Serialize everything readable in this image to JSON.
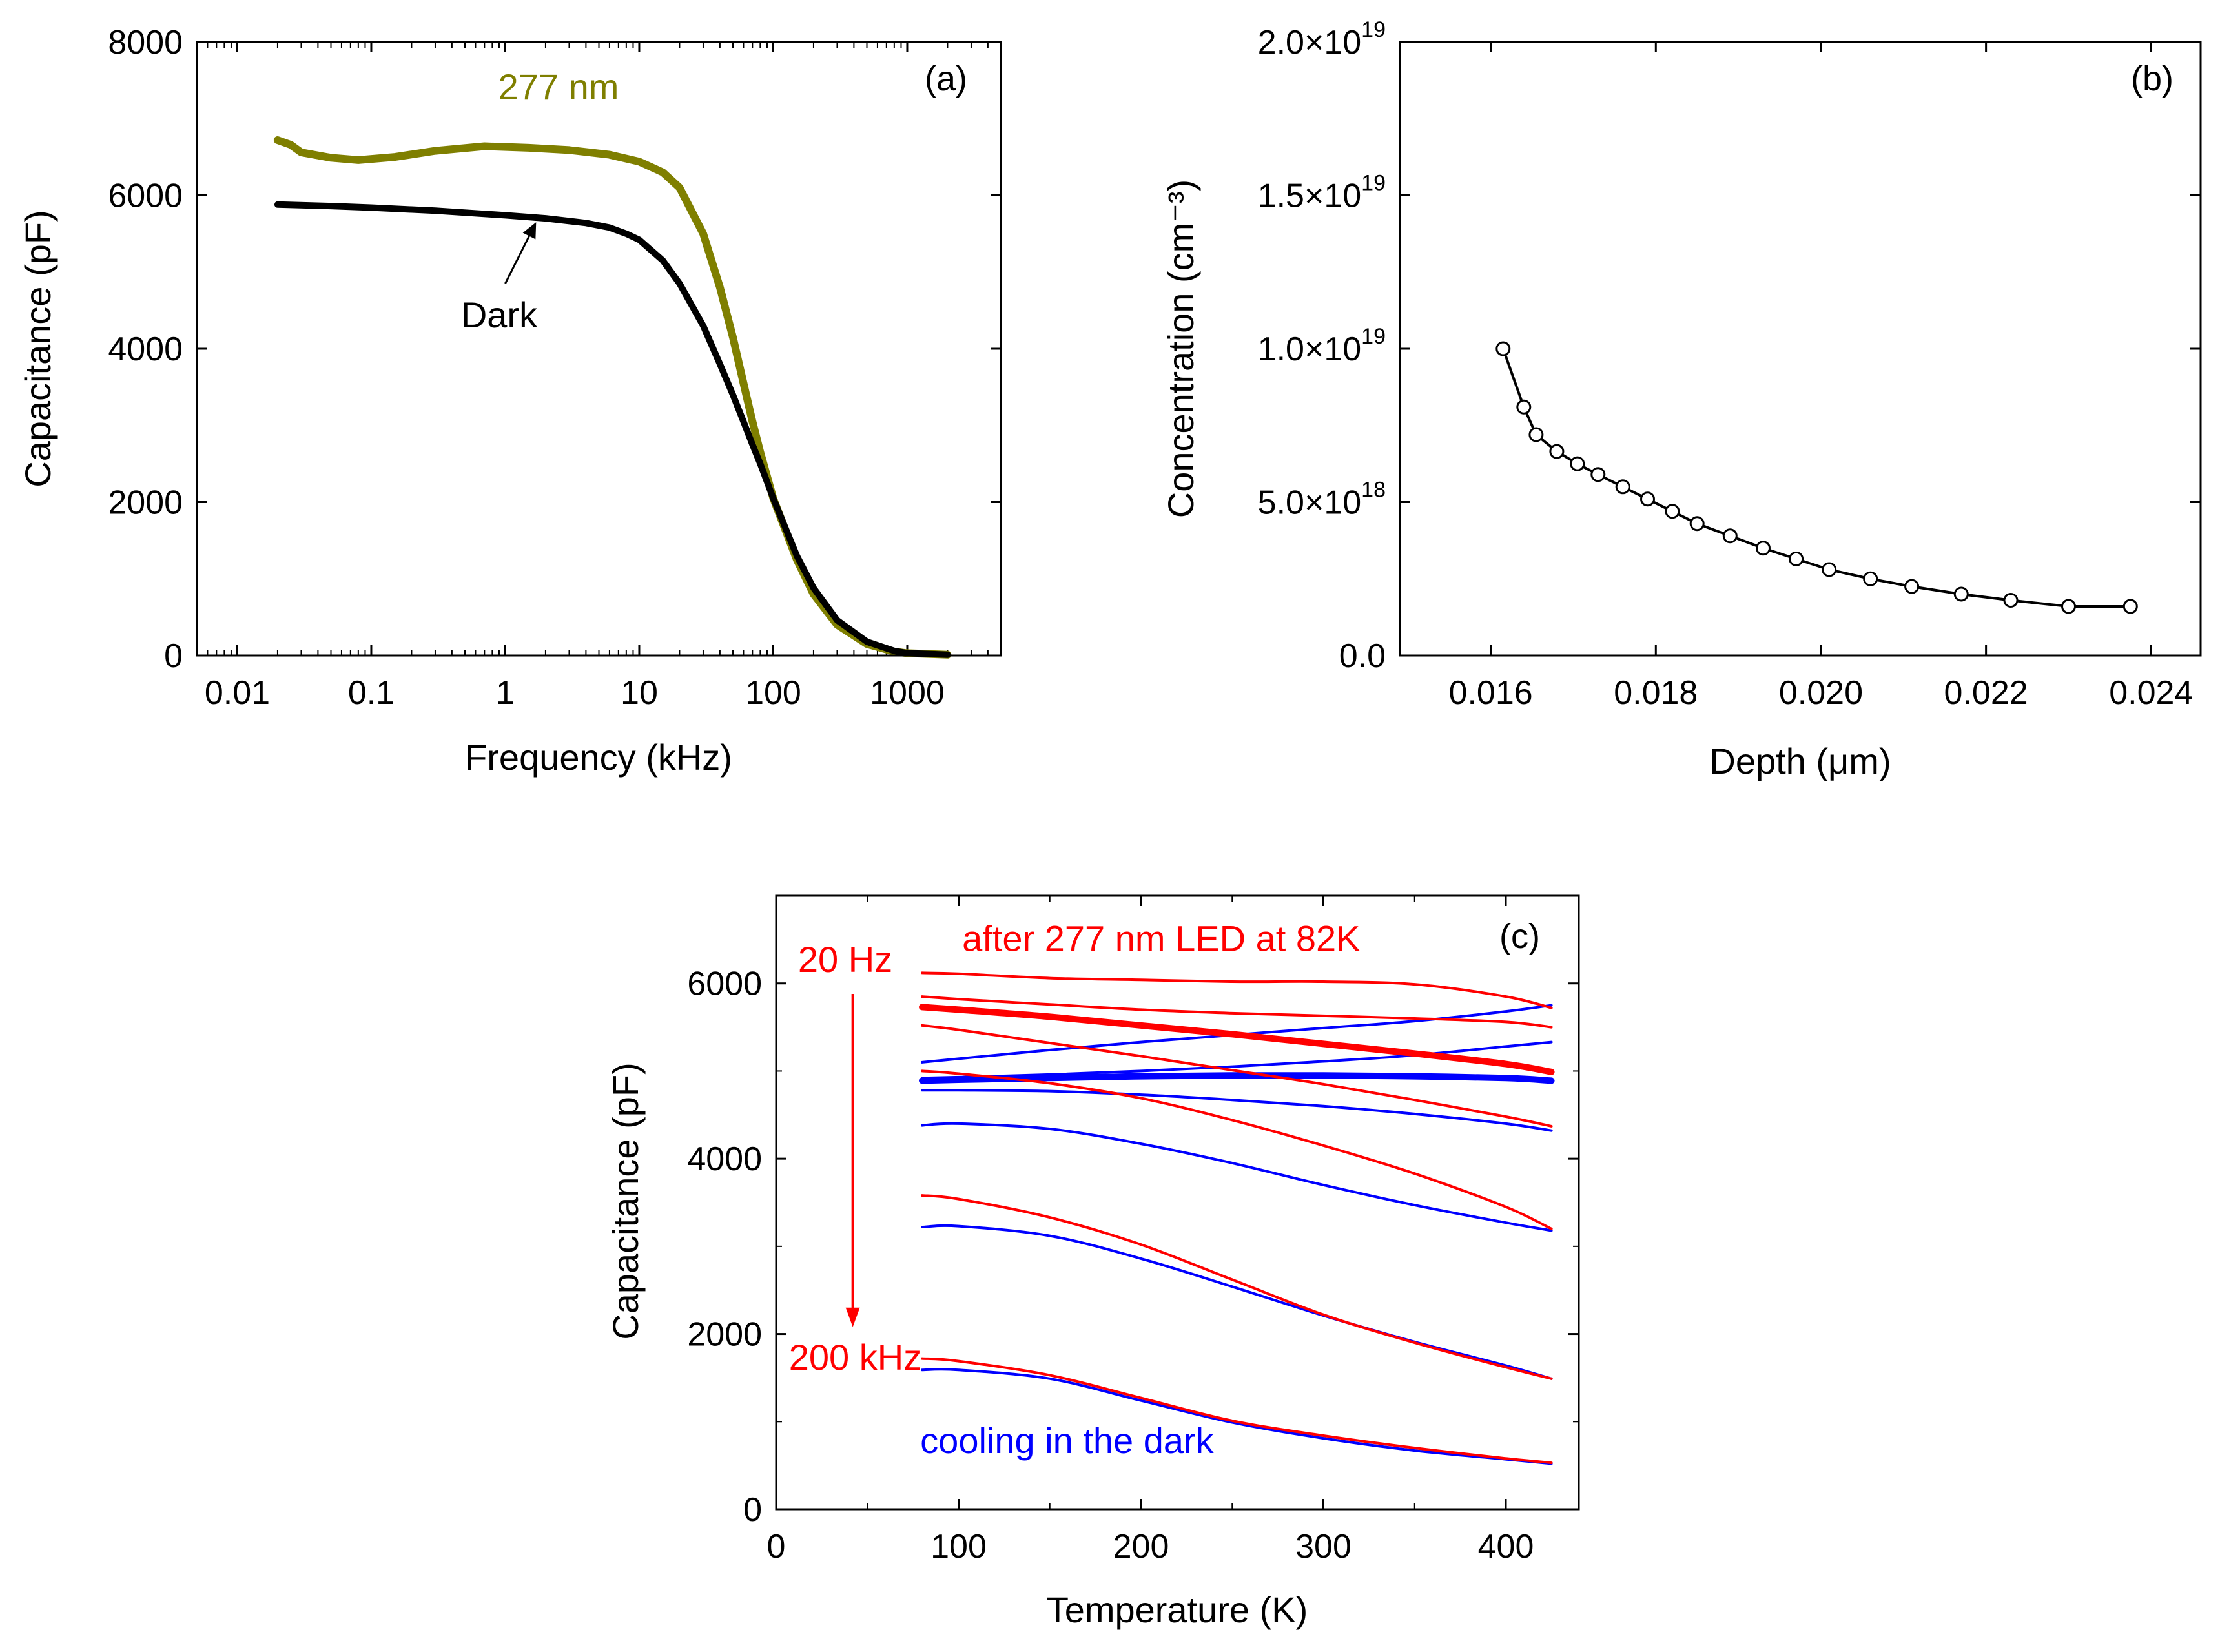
{
  "chart_data": [
    {
      "panel": "(a)",
      "type": "line",
      "xscale": "log",
      "xlabel": "Frequency (kHz)",
      "ylabel": "Capacitance (pF)",
      "xlim": [
        0.005,
        5000
      ],
      "ylim": [
        0,
        8000
      ],
      "xticks": [
        0.01,
        0.1,
        1,
        10,
        100,
        1000
      ],
      "xtick_labels": [
        "0.01",
        "0.1",
        "1",
        "10",
        "100",
        "1000"
      ],
      "yticks": [
        0,
        2000,
        4000,
        6000,
        8000
      ],
      "ytick_labels": [
        "0",
        "2000",
        "4000",
        "6000",
        "8000"
      ],
      "series": [
        {
          "name": "277 nm",
          "color": "#7f7f00",
          "x": [
            0.02,
            0.025,
            0.03,
            0.05,
            0.08,
            0.15,
            0.3,
            0.7,
            1.5,
            3,
            6,
            10,
            15,
            20,
            30,
            40,
            50,
            60,
            70,
            80,
            100,
            150,
            200,
            300,
            500,
            800,
            1000,
            2000
          ],
          "values": [
            6720,
            6660,
            6560,
            6490,
            6460,
            6500,
            6580,
            6640,
            6620,
            6590,
            6530,
            6440,
            6300,
            6100,
            5500,
            4800,
            4150,
            3550,
            3050,
            2650,
            2050,
            1250,
            800,
            400,
            150,
            50,
            30,
            10
          ]
        },
        {
          "name": "Dark",
          "color": "#000000",
          "x": [
            0.02,
            0.05,
            0.1,
            0.3,
            1,
            2,
            4,
            6,
            8,
            10,
            15,
            20,
            30,
            40,
            50,
            60,
            70,
            80,
            100,
            150,
            200,
            300,
            500,
            800,
            1000,
            2000
          ],
          "values": [
            5880,
            5860,
            5840,
            5800,
            5740,
            5700,
            5640,
            5580,
            5500,
            5420,
            5150,
            4850,
            4300,
            3800,
            3400,
            3050,
            2750,
            2500,
            2050,
            1300,
            880,
            460,
            180,
            60,
            30,
            10
          ]
        }
      ],
      "annotations": [
        {
          "text": "277 nm",
          "color": "#7f7f00",
          "x": 2.5,
          "y": 7250
        },
        {
          "text": "Dark",
          "color": "#000000",
          "x": 0.9,
          "y": 4280
        },
        {
          "text": "arrow",
          "color": "#000000",
          "x_from": 1.0,
          "y_from": 4850,
          "x_to": 1.7,
          "y_to": 5650
        }
      ]
    },
    {
      "panel": "(b)",
      "type": "line",
      "xlabel": "Depth (μm)",
      "ylabel": "Concentration (cm⁻³)",
      "xlim": [
        0.0149,
        0.0246
      ],
      "ylim": [
        0,
        2e+19
      ],
      "xticks": [
        0.016,
        0.018,
        0.02,
        0.022,
        0.024
      ],
      "xtick_labels": [
        "0.016",
        "0.018",
        "0.020",
        "0.022",
        "0.024"
      ],
      "yticks": [
        0,
        5e+18,
        1e+19,
        1.5e+19,
        2e+19
      ],
      "ytick_labels": [
        "0.0",
        "5.0×10",
        "1.0×10",
        "1.5×10",
        "2.0×10"
      ],
      "ytick_exponents": [
        "",
        "18",
        "19",
        "19",
        "19"
      ],
      "series": [
        {
          "name": "Concentration",
          "color": "#000000",
          "marker": "open-circle",
          "x": [
            0.01615,
            0.0164,
            0.01655,
            0.0168,
            0.01705,
            0.0173,
            0.0176,
            0.0179,
            0.0182,
            0.0185,
            0.0189,
            0.0193,
            0.0197,
            0.0201,
            0.0206,
            0.0211,
            0.0217,
            0.0223,
            0.023,
            0.02375
          ],
          "values": [
            1e+19,
            8.1e+18,
            7.2e+18,
            6.65e+18,
            6.25e+18,
            5.9e+18,
            5.5e+18,
            5.1e+18,
            4.7e+18,
            4.3e+18,
            3.9e+18,
            3.5e+18,
            3.15e+18,
            2.8e+18,
            2.5e+18,
            2.25e+18,
            2e+18,
            1.8e+18,
            1.6e+18,
            1.6e+18
          ]
        }
      ]
    },
    {
      "panel": "(c)",
      "type": "line",
      "xlabel": "Temperature (K)",
      "ylabel": "Capacitance (pF)",
      "xlim": [
        0,
        440
      ],
      "ylim": [
        0,
        7000
      ],
      "xticks": [
        0,
        100,
        200,
        300,
        400
      ],
      "xtick_labels": [
        "0",
        "100",
        "200",
        "300",
        "400"
      ],
      "yticks": [
        0,
        2000,
        4000,
        6000
      ],
      "ytick_labels": [
        "0",
        "2000",
        "4000",
        "6000"
      ],
      "x": [
        80,
        100,
        150,
        200,
        250,
        300,
        350,
        400,
        425
      ],
      "series": [
        {
          "name": "after 277 nm LED at 82K",
          "color": "#ff0000",
          "width": "thin",
          "values": [
            6120,
            6110,
            6060,
            6040,
            6020,
            6020,
            5990,
            5850,
            5720
          ]
        },
        {
          "name": "after 277 nm LED at 82K",
          "color": "#ff0000",
          "width": "thin",
          "values": [
            5850,
            5820,
            5760,
            5700,
            5660,
            5630,
            5600,
            5560,
            5500
          ]
        },
        {
          "name": "after 277 nm LED at 82K",
          "color": "#ff0000",
          "width": "thick",
          "values": [
            5730,
            5700,
            5620,
            5520,
            5420,
            5310,
            5200,
            5080,
            4990
          ]
        },
        {
          "name": "after 277 nm LED at 82K",
          "color": "#ff0000",
          "width": "thin",
          "values": [
            5520,
            5470,
            5320,
            5170,
            5010,
            4850,
            4670,
            4480,
            4370
          ]
        },
        {
          "name": "after 277 nm LED at 82K",
          "color": "#ff0000",
          "width": "thin",
          "values": [
            5000,
            4970,
            4860,
            4690,
            4440,
            4150,
            3830,
            3450,
            3200
          ]
        },
        {
          "name": "after 277 nm LED at 82K",
          "color": "#ff0000",
          "width": "thin",
          "values": [
            3580,
            3540,
            3330,
            3020,
            2620,
            2220,
            1900,
            1620,
            1490
          ]
        },
        {
          "name": "after 277 nm LED at 82K",
          "color": "#ff0000",
          "width": "thin",
          "values": [
            1720,
            1690,
            1530,
            1270,
            1010,
            840,
            700,
            580,
            530
          ]
        },
        {
          "name": "cooling in the dark",
          "color": "#0000ff",
          "width": "thin",
          "values": [
            5100,
            5140,
            5240,
            5330,
            5410,
            5490,
            5570,
            5680,
            5750
          ]
        },
        {
          "name": "cooling in the dark",
          "color": "#0000ff",
          "width": "thin",
          "values": [
            4920,
            4930,
            4960,
            5000,
            5050,
            5110,
            5180,
            5280,
            5330
          ]
        },
        {
          "name": "cooling in the dark",
          "color": "#0000ff",
          "width": "thick",
          "values": [
            4890,
            4900,
            4920,
            4940,
            4950,
            4950,
            4940,
            4920,
            4890
          ]
        },
        {
          "name": "cooling in the dark",
          "color": "#0000ff",
          "width": "thin",
          "values": [
            4780,
            4780,
            4770,
            4730,
            4670,
            4600,
            4510,
            4400,
            4320
          ]
        },
        {
          "name": "cooling in the dark",
          "color": "#0000ff",
          "width": "thin",
          "values": [
            4380,
            4400,
            4340,
            4170,
            3950,
            3700,
            3470,
            3270,
            3180
          ]
        },
        {
          "name": "cooling in the dark",
          "color": "#0000ff",
          "width": "thin",
          "values": [
            3220,
            3230,
            3120,
            2860,
            2540,
            2210,
            1910,
            1640,
            1490
          ]
        },
        {
          "name": "cooling in the dark",
          "color": "#0000ff",
          "width": "thin",
          "values": [
            1590,
            1590,
            1490,
            1240,
            990,
            810,
            670,
            570,
            520
          ]
        }
      ],
      "annotations": [
        {
          "text": "after 277 nm LED at 82K",
          "color": "#ff0000",
          "x": 102,
          "y": 6370
        },
        {
          "text": "20 Hz",
          "color": "#ff0000",
          "x": 12,
          "y": 6130
        },
        {
          "text": "200 kHz",
          "color": "#ff0000",
          "x": 7,
          "y": 1590
        },
        {
          "text": "cooling in the dark",
          "color": "#0000ff",
          "x": 79,
          "y": 640
        },
        {
          "text": "arrow",
          "color": "#ff0000",
          "x_from": 42,
          "y_from": 5880,
          "x_to": 42,
          "y_to": 2080
        }
      ]
    }
  ]
}
